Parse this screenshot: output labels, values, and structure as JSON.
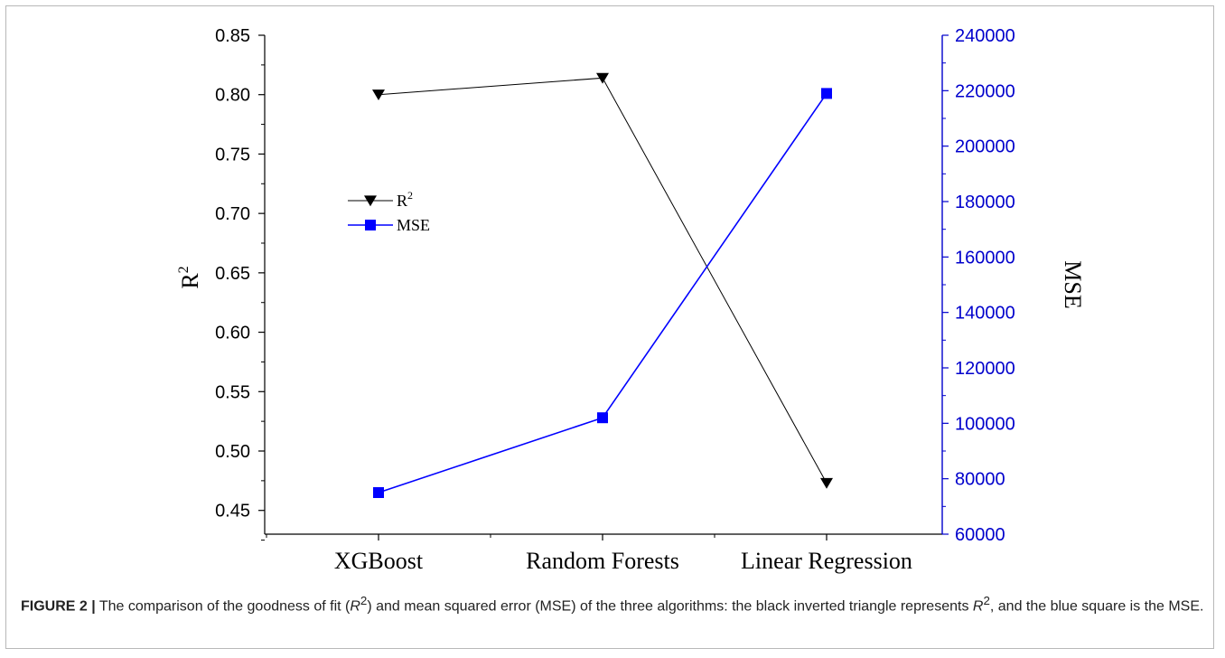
{
  "chart_data": {
    "type": "line",
    "categories": [
      "XGBoost",
      "Random Forests",
      "Linear Regression"
    ],
    "series": [
      {
        "name": "R",
        "name_sup": "2",
        "axis": "left",
        "marker": "inverted-triangle",
        "color": "#000000",
        "values": [
          0.8,
          0.814,
          0.473
        ]
      },
      {
        "name": "MSE",
        "axis": "right",
        "marker": "square",
        "color": "#0000ff",
        "values": [
          75000,
          102000,
          219000
        ]
      }
    ],
    "y_left": {
      "label": "R",
      "label_sup": "2",
      "ylim": [
        0.43,
        0.85
      ],
      "ticks": [
        "0.45",
        "0.50",
        "0.55",
        "0.60",
        "0.65",
        "0.70",
        "0.75",
        "0.80",
        "0.85"
      ],
      "tick_values": [
        0.45,
        0.5,
        0.55,
        0.6,
        0.65,
        0.7,
        0.75,
        0.8,
        0.85
      ]
    },
    "y_right": {
      "label": "MSE",
      "ylim": [
        60000,
        240000
      ],
      "ticks": [
        "60000",
        "80000",
        "100000",
        "120000",
        "140000",
        "160000",
        "180000",
        "200000",
        "220000",
        "240000"
      ],
      "tick_values": [
        60000,
        80000,
        100000,
        120000,
        140000,
        160000,
        180000,
        200000,
        220000,
        240000
      ],
      "color": "#0000cc"
    },
    "legend": {
      "placement": "upper-left-inside"
    },
    "grid": false
  },
  "caption": {
    "label": "FIGURE 2 |",
    "part1": " The comparison of the goodness of fit (",
    "r": "R",
    "sup": "2",
    "part2": ") and mean squared error (MSE) of the three algorithms: the black inverted triangle represents ",
    "part3": ", and the blue square is the MSE."
  }
}
